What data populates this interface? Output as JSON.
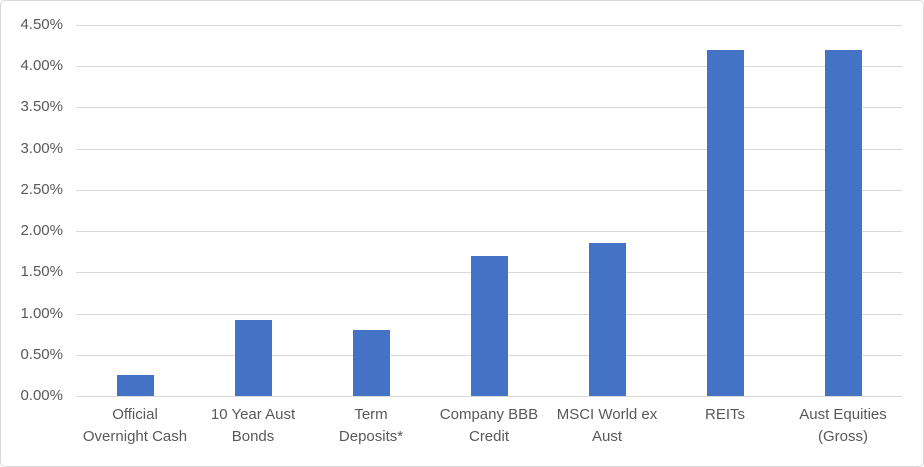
{
  "chart_data": {
    "type": "bar",
    "title": "",
    "xlabel": "",
    "ylabel": "",
    "categories": [
      "Official Overnight Cash",
      "10 Year Aust Bonds",
      "Term Deposits*",
      "Company BBB Credit",
      "MSCI World ex Aust",
      "REITs",
      "Aust Equities (Gross)"
    ],
    "category_lines": [
      [
        "Official",
        "Overnight Cash"
      ],
      [
        "10 Year Aust",
        "Bonds"
      ],
      [
        "Term",
        "Deposits*"
      ],
      [
        "Company BBB",
        "Credit"
      ],
      [
        "MSCI World ex",
        "Aust"
      ],
      [
        "REITs"
      ],
      [
        "Aust Equities",
        "(Gross)"
      ]
    ],
    "values": [
      0.25,
      0.92,
      0.8,
      1.7,
      1.86,
      4.2,
      4.2
    ],
    "value_unit": "percent",
    "ylim": [
      0,
      4.5
    ],
    "ytick_step": 0.5,
    "ytick_labels": [
      "0.00%",
      "0.50%",
      "1.00%",
      "1.50%",
      "2.00%",
      "2.50%",
      "3.00%",
      "3.50%",
      "4.00%",
      "4.50%"
    ],
    "grid": true,
    "legend": false,
    "colors": {
      "bar": "#4472c4",
      "gridline": "#d9d9d9",
      "axis_line": "#d9d9d9",
      "text": "#595959",
      "chart_border": "#d9d9d9",
      "background": "#ffffff"
    }
  }
}
